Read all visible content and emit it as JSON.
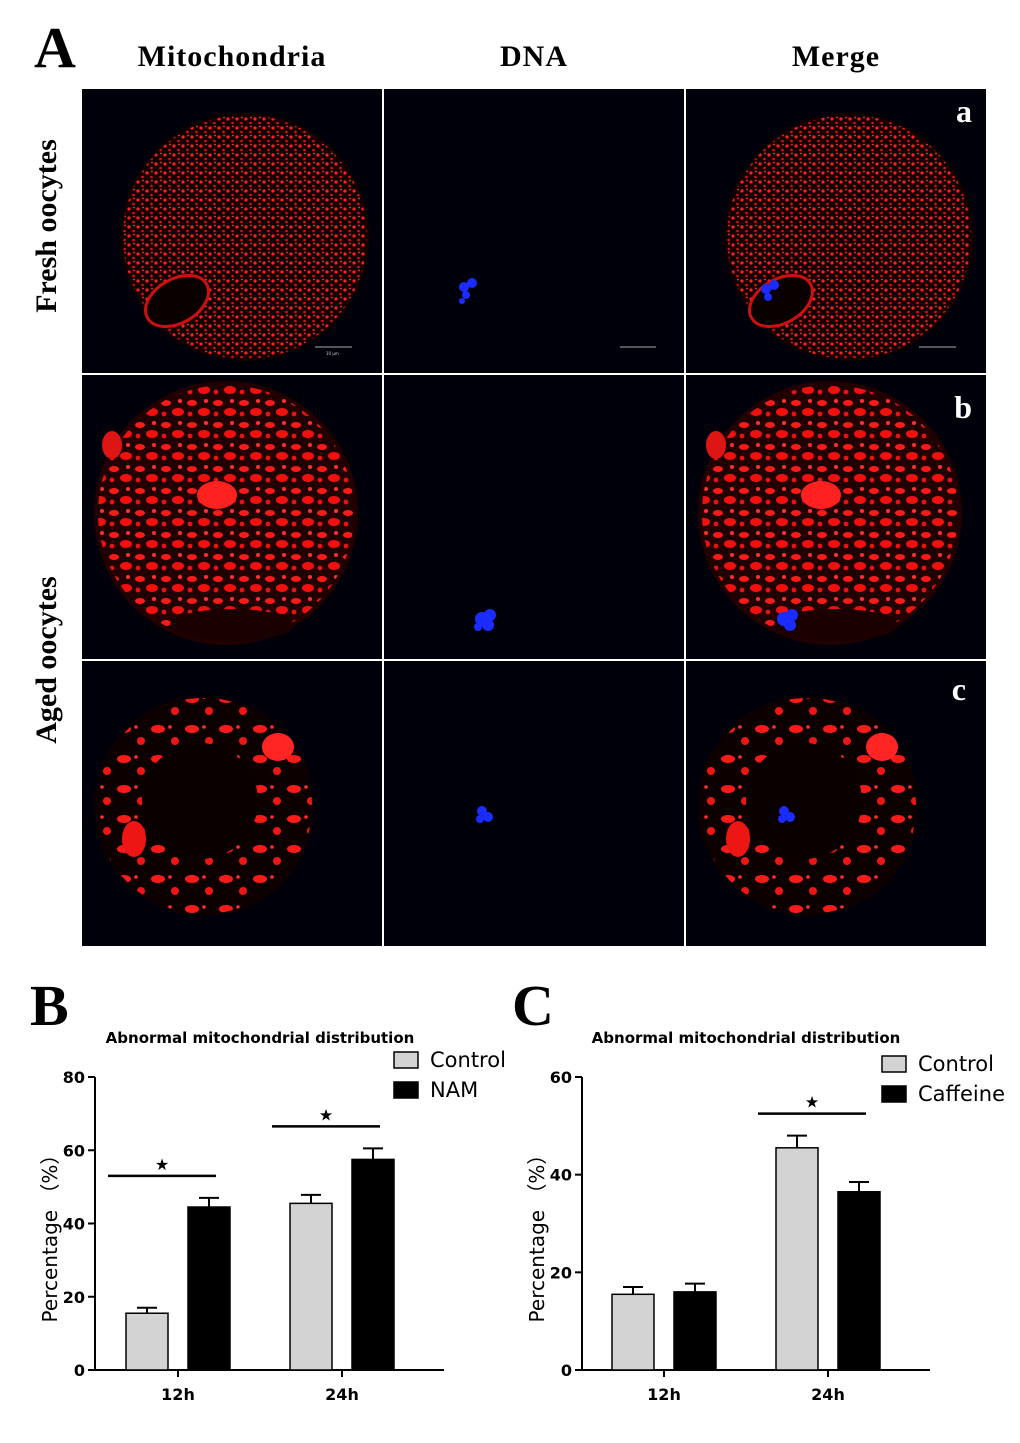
{
  "figure": {
    "panel_A_letter": "A",
    "panel_B_letter": "B",
    "panel_C_letter": "C",
    "column_headers": [
      "Mitochondria",
      "DNA",
      "Merge"
    ],
    "row_headers": [
      "Fresh oocytes",
      "Aged oocytes"
    ],
    "row_letters": [
      "a",
      "b",
      "c"
    ],
    "scale_bar_label": "10 μm",
    "colors": {
      "mitochondria": "#ff1a1a",
      "dna": "#1a2cff",
      "background": "#00000a"
    }
  },
  "chart_data": [
    {
      "type": "bar",
      "panel": "B",
      "title": "Abnormal mitochondrial distribution",
      "ylabel": "Percentage （%）",
      "xlabel": "",
      "categories": [
        "12h",
        "24h"
      ],
      "ylim": [
        0,
        80
      ],
      "yticks": [
        0,
        20,
        40,
        60,
        80
      ],
      "series": [
        {
          "name": "Control",
          "values": [
            15.5,
            45.5
          ],
          "errors": [
            1.5,
            2.3
          ],
          "color": "#d3d3d3"
        },
        {
          "name": "NAM",
          "values": [
            44.5,
            57.5
          ],
          "errors": [
            2.5,
            3.0
          ],
          "color": "#000000"
        }
      ],
      "significance": [
        {
          "category": "12h",
          "symbol": "★"
        },
        {
          "category": "24h",
          "symbol": "★"
        }
      ],
      "legend_position": "top-right"
    },
    {
      "type": "bar",
      "panel": "C",
      "title": "Abnormal mitochondrial distribution",
      "ylabel": "Percentage （%）",
      "xlabel": "",
      "categories": [
        "12h",
        "24h"
      ],
      "ylim": [
        0,
        60
      ],
      "yticks": [
        0,
        20,
        40,
        60
      ],
      "series": [
        {
          "name": "Control",
          "values": [
            15.5,
            45.5
          ],
          "errors": [
            1.5,
            2.5
          ],
          "color": "#d3d3d3"
        },
        {
          "name": "Caffeine",
          "values": [
            16.0,
            36.5
          ],
          "errors": [
            1.7,
            2.0
          ],
          "color": "#000000"
        }
      ],
      "significance": [
        {
          "category": "24h",
          "symbol": "★"
        }
      ],
      "legend_position": "top-right"
    }
  ]
}
